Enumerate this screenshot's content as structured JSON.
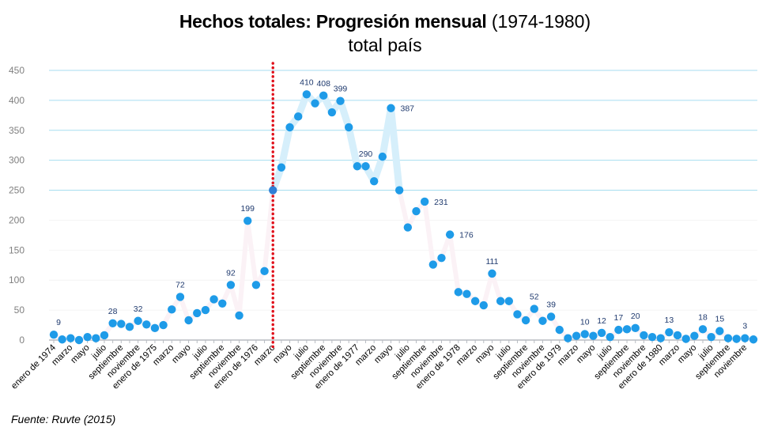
{
  "chart_data": {
    "type": "line",
    "title_bold": "Hechos totales: Progresión mensual",
    "title_regular": "(1974-1980)",
    "subtitle": "total país",
    "xlabel": "",
    "ylabel": "",
    "ylim": [
      0,
      450
    ],
    "yticks": [
      0,
      50,
      100,
      150,
      200,
      250,
      300,
      350,
      400,
      450
    ],
    "grid": true,
    "legend": "none",
    "x_tick_labels": [
      "enero de 1974",
      "marzo",
      "mayo",
      "julio",
      "septiembre",
      "noviembre",
      "enero de 1975",
      "marzo",
      "mayo",
      "julio",
      "septiembre",
      "noviembre",
      "enero de 1976",
      "marzo",
      "mayo",
      "julio",
      "septiembre",
      "noviembre",
      "enero de 1977",
      "marzo",
      "mayo",
      "julio",
      "septiembre",
      "noviembre",
      "enero de 1978",
      "marzo",
      "mayo",
      "julio",
      "septiembre",
      "noviembre",
      "enero de 1979",
      "marzo",
      "mayo",
      "julio",
      "septiembre",
      "noviembre",
      "enero de 1980",
      "marzo",
      "mayo",
      "julio",
      "septiembre",
      "noviembre"
    ],
    "series": [
      {
        "name": "Hechos totales",
        "values": [
          9,
          1,
          3,
          0,
          5,
          3,
          8,
          28,
          27,
          22,
          32,
          26,
          20,
          25,
          51,
          72,
          33,
          45,
          50,
          68,
          61,
          92,
          41,
          199,
          92,
          115,
          250,
          288,
          355,
          373,
          410,
          395,
          408,
          380,
          399,
          355,
          290,
          290,
          265,
          306,
          387,
          250,
          188,
          215,
          231,
          126,
          137,
          176,
          80,
          77,
          65,
          58,
          111,
          65,
          65,
          43,
          33,
          52,
          32,
          39,
          17,
          3,
          7,
          10,
          7,
          12,
          5,
          17,
          18,
          20,
          8,
          5,
          3,
          13,
          8,
          2,
          7,
          18,
          5,
          15,
          3,
          2,
          3,
          1
        ]
      }
    ],
    "data_labels": [
      {
        "index": 0,
        "text": "9"
      },
      {
        "index": 7,
        "text": "28"
      },
      {
        "index": 10,
        "text": "32"
      },
      {
        "index": 15,
        "text": "72"
      },
      {
        "index": 21,
        "text": "92"
      },
      {
        "index": 23,
        "text": "199"
      },
      {
        "index": 30,
        "text": "410"
      },
      {
        "index": 32,
        "text": "408"
      },
      {
        "index": 34,
        "text": "399"
      },
      {
        "index": 37,
        "text": "290"
      },
      {
        "index": 40,
        "text": "387",
        "side": "right"
      },
      {
        "index": 44,
        "text": "231",
        "side": "right"
      },
      {
        "index": 47,
        "text": "176",
        "side": "right"
      },
      {
        "index": 52,
        "text": "111"
      },
      {
        "index": 57,
        "text": "52"
      },
      {
        "index": 59,
        "text": "39"
      },
      {
        "index": 63,
        "text": "10"
      },
      {
        "index": 65,
        "text": "12"
      },
      {
        "index": 67,
        "text": "17"
      },
      {
        "index": 69,
        "text": "20"
      },
      {
        "index": 73,
        "text": "13"
      },
      {
        "index": 77,
        "text": "18"
      },
      {
        "index": 79,
        "text": "15"
      },
      {
        "index": 82,
        "text": "3"
      }
    ],
    "annotations": [
      {
        "type": "vertical-dotted-line",
        "at_index": 26,
        "color": "#e0101a"
      }
    ],
    "colors": {
      "marker": "#1e9be8",
      "marker_highlight": "#2f7fd6",
      "line": "#d6effb",
      "gridline_major": "#a7def0",
      "gridline_minor": "#f4f4f4",
      "data_label": "#1f3a6e",
      "axis": "#b8bcc2"
    }
  },
  "footer": {
    "source": "Fuente: Ruvte (2015)"
  }
}
